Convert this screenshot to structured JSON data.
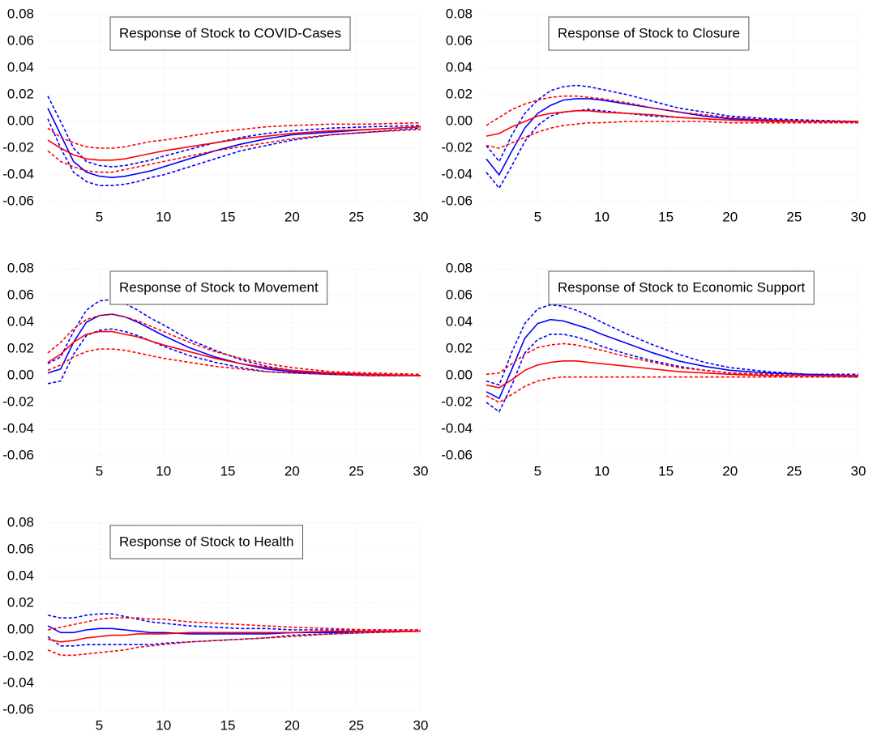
{
  "chart_data": [
    {
      "type": "line",
      "title": "Response of Stock to COVID-Cases",
      "x": [
        1,
        2,
        3,
        4,
        5,
        6,
        7,
        8,
        9,
        10,
        12,
        14,
        16,
        18,
        20,
        23,
        26,
        30
      ],
      "xlim": [
        1,
        30
      ],
      "xticks": [
        5,
        10,
        15,
        20,
        25,
        30
      ],
      "ylim": [
        -0.06,
        0.08
      ],
      "yticks": [
        0.08,
        0.06,
        0.04,
        0.02,
        {
          "value": 0,
          "label": "0.00"
        },
        -0.02,
        -0.04,
        -0.06
      ],
      "grid": true,
      "series": [
        {
          "color": "#0000ff",
          "line_style": "solid",
          "values": [
            0.01,
            -0.01,
            -0.03,
            -0.038,
            -0.041,
            -0.042,
            -0.041,
            -0.039,
            -0.037,
            -0.034,
            -0.028,
            -0.022,
            -0.017,
            -0.013,
            -0.01,
            -0.008,
            -0.006,
            -0.004
          ]
        },
        {
          "color": "#0000ff",
          "line_style": "dashed",
          "values": [
            0.019,
            0.0,
            -0.02,
            -0.03,
            -0.033,
            -0.034,
            -0.033,
            -0.031,
            -0.029,
            -0.026,
            -0.021,
            -0.016,
            -0.012,
            -0.009,
            -0.007,
            -0.005,
            -0.004,
            -0.003
          ]
        },
        {
          "color": "#0000ff",
          "line_style": "dashed",
          "values": [
            0.002,
            -0.02,
            -0.038,
            -0.045,
            -0.048,
            -0.048,
            -0.047,
            -0.045,
            -0.042,
            -0.04,
            -0.034,
            -0.028,
            -0.022,
            -0.018,
            -0.014,
            -0.01,
            -0.008,
            -0.005
          ]
        },
        {
          "color": "#ff0000",
          "line_style": "solid",
          "values": [
            -0.014,
            -0.02,
            -0.025,
            -0.028,
            -0.029,
            -0.029,
            -0.028,
            -0.026,
            -0.024,
            -0.022,
            -0.019,
            -0.016,
            -0.013,
            -0.011,
            -0.009,
            -0.007,
            -0.006,
            -0.004
          ]
        },
        {
          "color": "#ff0000",
          "line_style": "dashed",
          "values": [
            -0.005,
            -0.012,
            -0.016,
            -0.019,
            -0.02,
            -0.02,
            -0.019,
            -0.017,
            -0.015,
            -0.014,
            -0.011,
            -0.008,
            -0.006,
            -0.004,
            -0.003,
            -0.002,
            -0.002,
            -0.001
          ]
        },
        {
          "color": "#ff0000",
          "line_style": "dashed",
          "values": [
            -0.022,
            -0.03,
            -0.034,
            -0.037,
            -0.038,
            -0.038,
            -0.036,
            -0.034,
            -0.032,
            -0.03,
            -0.026,
            -0.022,
            -0.019,
            -0.016,
            -0.013,
            -0.01,
            -0.008,
            -0.006
          ]
        }
      ]
    },
    {
      "type": "line",
      "title": "Response of Stock to Closure",
      "x": [
        1,
        2,
        3,
        4,
        5,
        6,
        7,
        8,
        9,
        10,
        12,
        14,
        16,
        18,
        20,
        23,
        26,
        30
      ],
      "xlim": [
        1,
        30
      ],
      "xticks": [
        5,
        10,
        15,
        20,
        25,
        30
      ],
      "ylim": [
        -0.06,
        0.08
      ],
      "yticks": [
        0.08,
        0.06,
        0.04,
        0.02,
        {
          "value": 0,
          "label": "0.00"
        },
        -0.02,
        -0.04,
        -0.06
      ],
      "grid": true,
      "series": [
        {
          "color": "#0000ff",
          "line_style": "solid",
          "values": [
            -0.028,
            -0.04,
            -0.022,
            -0.005,
            0.006,
            0.012,
            0.016,
            0.017,
            0.017,
            0.016,
            0.013,
            0.01,
            0.007,
            0.004,
            0.002,
            0.001,
            0.0,
            0.0
          ]
        },
        {
          "color": "#0000ff",
          "line_style": "dashed",
          "values": [
            -0.018,
            -0.03,
            -0.01,
            0.006,
            0.016,
            0.023,
            0.026,
            0.027,
            0.026,
            0.024,
            0.02,
            0.015,
            0.01,
            0.007,
            0.004,
            0.002,
            0.001,
            0.0
          ]
        },
        {
          "color": "#0000ff",
          "line_style": "dashed",
          "values": [
            -0.038,
            -0.05,
            -0.033,
            -0.015,
            -0.003,
            0.004,
            0.007,
            0.008,
            0.009,
            0.008,
            0.006,
            0.004,
            0.003,
            0.002,
            0.001,
            0.0,
            0.0,
            -0.001
          ]
        },
        {
          "color": "#ff0000",
          "line_style": "solid",
          "values": [
            -0.011,
            -0.009,
            -0.004,
            0.0,
            0.004,
            0.006,
            0.007,
            0.008,
            0.008,
            0.007,
            0.006,
            0.005,
            0.003,
            0.002,
            0.001,
            0.0,
            0.0,
            0.0
          ]
        },
        {
          "color": "#ff0000",
          "line_style": "dashed",
          "values": [
            -0.003,
            0.003,
            0.009,
            0.013,
            0.016,
            0.018,
            0.019,
            0.019,
            0.018,
            0.017,
            0.014,
            0.01,
            0.007,
            0.005,
            0.003,
            0.001,
            0.0,
            0.0
          ]
        },
        {
          "color": "#ff0000",
          "line_style": "dashed",
          "values": [
            -0.018,
            -0.02,
            -0.016,
            -0.012,
            -0.008,
            -0.005,
            -0.003,
            -0.002,
            -0.001,
            -0.001,
            0.0,
            0.0,
            0.0,
            0.0,
            -0.001,
            -0.001,
            -0.001,
            -0.001
          ]
        }
      ]
    },
    {
      "type": "line",
      "title": "Response of Stock to Movement",
      "x": [
        1,
        2,
        3,
        4,
        5,
        6,
        7,
        8,
        9,
        10,
        12,
        14,
        16,
        18,
        20,
        23,
        26,
        30
      ],
      "xlim": [
        1,
        30
      ],
      "xticks": [
        5,
        10,
        15,
        20,
        25,
        30
      ],
      "ylim": [
        -0.06,
        0.08
      ],
      "yticks": [
        0.08,
        0.06,
        0.04,
        0.02,
        {
          "value": 0,
          "label": "0.00"
        },
        -0.02,
        -0.04,
        -0.06
      ],
      "grid": true,
      "series": [
        {
          "color": "#0000ff",
          "line_style": "solid",
          "values": [
            0.002,
            0.005,
            0.025,
            0.04,
            0.045,
            0.046,
            0.044,
            0.04,
            0.035,
            0.03,
            0.021,
            0.014,
            0.009,
            0.005,
            0.003,
            0.001,
            0.001,
            0.0
          ]
        },
        {
          "color": "#0000ff",
          "line_style": "dashed",
          "values": [
            0.009,
            0.014,
            0.033,
            0.049,
            0.056,
            0.057,
            0.054,
            0.049,
            0.043,
            0.038,
            0.027,
            0.019,
            0.012,
            0.007,
            0.004,
            0.002,
            0.001,
            0.0
          ]
        },
        {
          "color": "#0000ff",
          "line_style": "dashed",
          "values": [
            -0.006,
            -0.004,
            0.016,
            0.03,
            0.034,
            0.035,
            0.033,
            0.03,
            0.026,
            0.022,
            0.015,
            0.01,
            0.006,
            0.003,
            0.002,
            0.001,
            0.0,
            0.0
          ]
        },
        {
          "color": "#ff0000",
          "line_style": "solid",
          "values": [
            0.01,
            0.016,
            0.025,
            0.031,
            0.033,
            0.033,
            0.031,
            0.029,
            0.026,
            0.023,
            0.018,
            0.013,
            0.009,
            0.006,
            0.004,
            0.002,
            0.001,
            0.0
          ]
        },
        {
          "color": "#ff0000",
          "line_style": "dashed",
          "values": [
            0.017,
            0.025,
            0.035,
            0.042,
            0.045,
            0.046,
            0.044,
            0.041,
            0.037,
            0.033,
            0.025,
            0.018,
            0.013,
            0.009,
            0.006,
            0.003,
            0.002,
            0.001
          ]
        },
        {
          "color": "#ff0000",
          "line_style": "dashed",
          "values": [
            0.004,
            0.008,
            0.014,
            0.018,
            0.02,
            0.02,
            0.019,
            0.017,
            0.015,
            0.013,
            0.01,
            0.007,
            0.005,
            0.003,
            0.002,
            0.001,
            0.0,
            0.0
          ]
        }
      ]
    },
    {
      "type": "line",
      "title": "Response of Stock to Economic Support",
      "x": [
        1,
        2,
        3,
        4,
        5,
        6,
        7,
        8,
        9,
        10,
        12,
        14,
        16,
        18,
        20,
        23,
        26,
        30
      ],
      "xlim": [
        1,
        30
      ],
      "xticks": [
        5,
        10,
        15,
        20,
        25,
        30
      ],
      "ylim": [
        -0.06,
        0.08
      ],
      "yticks": [
        0.08,
        0.06,
        0.04,
        0.02,
        {
          "value": 0,
          "label": "0.00"
        },
        -0.02,
        -0.04,
        -0.06
      ],
      "grid": true,
      "series": [
        {
          "color": "#0000ff",
          "line_style": "solid",
          "values": [
            -0.012,
            -0.017,
            0.005,
            0.028,
            0.039,
            0.042,
            0.041,
            0.038,
            0.035,
            0.031,
            0.024,
            0.017,
            0.011,
            0.007,
            0.004,
            0.002,
            0.001,
            0.0
          ]
        },
        {
          "color": "#0000ff",
          "line_style": "dashed",
          "values": [
            -0.004,
            -0.007,
            0.018,
            0.039,
            0.05,
            0.053,
            0.052,
            0.049,
            0.045,
            0.04,
            0.031,
            0.023,
            0.016,
            0.01,
            0.006,
            0.003,
            0.001,
            0.001
          ]
        },
        {
          "color": "#0000ff",
          "line_style": "dashed",
          "values": [
            -0.02,
            -0.027,
            -0.007,
            0.017,
            0.027,
            0.031,
            0.031,
            0.029,
            0.026,
            0.022,
            0.016,
            0.011,
            0.007,
            0.004,
            0.002,
            0.001,
            0.0,
            -0.001
          ]
        },
        {
          "color": "#ff0000",
          "line_style": "solid",
          "values": [
            -0.007,
            -0.009,
            -0.003,
            0.004,
            0.008,
            0.01,
            0.011,
            0.011,
            0.01,
            0.009,
            0.007,
            0.005,
            0.003,
            0.002,
            0.001,
            0.0,
            0.0,
            0.0
          ]
        },
        {
          "color": "#ff0000",
          "line_style": "dashed",
          "values": [
            0.001,
            0.002,
            0.009,
            0.016,
            0.021,
            0.023,
            0.024,
            0.023,
            0.021,
            0.019,
            0.014,
            0.01,
            0.006,
            0.004,
            0.002,
            0.001,
            0.0,
            0.0
          ]
        },
        {
          "color": "#ff0000",
          "line_style": "dashed",
          "values": [
            -0.015,
            -0.02,
            -0.014,
            -0.008,
            -0.004,
            -0.002,
            -0.001,
            -0.001,
            -0.001,
            -0.001,
            -0.001,
            -0.001,
            -0.001,
            -0.001,
            -0.001,
            -0.001,
            -0.001,
            -0.001
          ]
        }
      ]
    },
    {
      "type": "line",
      "title": "Response of Stock to Health",
      "x": [
        1,
        2,
        3,
        4,
        5,
        6,
        7,
        8,
        9,
        10,
        12,
        14,
        16,
        18,
        20,
        23,
        26,
        30
      ],
      "xlim": [
        1,
        30
      ],
      "xticks": [
        5,
        10,
        15,
        20,
        25,
        30
      ],
      "ylim": [
        -0.06,
        0.08
      ],
      "yticks": [
        0.08,
        0.06,
        0.04,
        0.02,
        {
          "value": 0,
          "label": "0.00"
        },
        -0.02,
        -0.04,
        -0.06
      ],
      "grid": true,
      "series": [
        {
          "color": "#0000ff",
          "line_style": "solid",
          "values": [
            0.003,
            -0.002,
            -0.002,
            0.0,
            0.001,
            0.001,
            0.0,
            -0.001,
            -0.002,
            -0.002,
            -0.003,
            -0.003,
            -0.003,
            -0.003,
            -0.002,
            -0.002,
            -0.001,
            -0.001
          ]
        },
        {
          "color": "#0000ff",
          "line_style": "dashed",
          "values": [
            0.011,
            0.009,
            0.009,
            0.011,
            0.012,
            0.012,
            0.01,
            0.008,
            0.006,
            0.005,
            0.003,
            0.002,
            0.001,
            0.001,
            0.0,
            0.0,
            0.0,
            0.0
          ]
        },
        {
          "color": "#0000ff",
          "line_style": "dashed",
          "values": [
            -0.005,
            -0.012,
            -0.012,
            -0.011,
            -0.011,
            -0.011,
            -0.011,
            -0.011,
            -0.011,
            -0.01,
            -0.009,
            -0.008,
            -0.007,
            -0.006,
            -0.004,
            -0.003,
            -0.002,
            -0.001
          ]
        },
        {
          "color": "#ff0000",
          "line_style": "solid",
          "values": [
            -0.007,
            -0.009,
            -0.008,
            -0.006,
            -0.005,
            -0.004,
            -0.004,
            -0.003,
            -0.003,
            -0.003,
            -0.002,
            -0.002,
            -0.002,
            -0.002,
            -0.002,
            -0.001,
            -0.001,
            -0.001
          ]
        },
        {
          "color": "#ff0000",
          "line_style": "dashed",
          "values": [
            0.0,
            0.002,
            0.004,
            0.006,
            0.008,
            0.009,
            0.009,
            0.009,
            0.008,
            0.008,
            0.006,
            0.005,
            0.004,
            0.003,
            0.002,
            0.001,
            0.0,
            0.0
          ]
        },
        {
          "color": "#ff0000",
          "line_style": "dashed",
          "values": [
            -0.015,
            -0.019,
            -0.019,
            -0.018,
            -0.017,
            -0.016,
            -0.015,
            -0.013,
            -0.012,
            -0.011,
            -0.009,
            -0.008,
            -0.007,
            -0.006,
            -0.005,
            -0.003,
            -0.002,
            -0.001
          ]
        }
      ]
    }
  ]
}
